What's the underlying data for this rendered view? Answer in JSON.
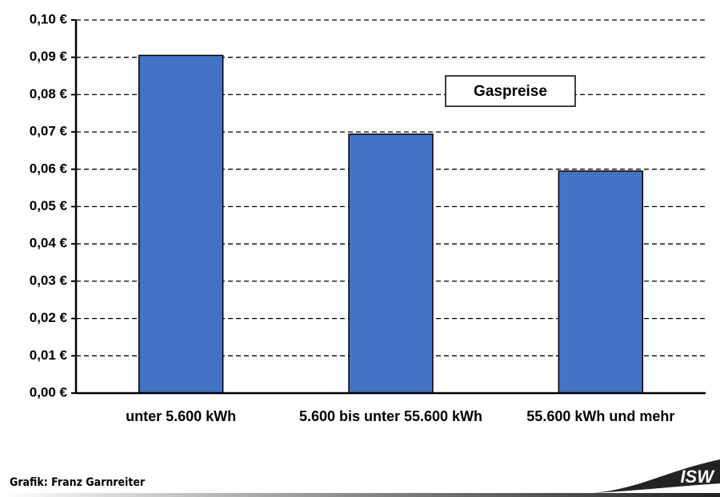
{
  "chart_data": {
    "type": "bar",
    "title": "Gaspreise",
    "categories": [
      "unter 5.600 kWh",
      "5.600 bis unter 55.600 kWh",
      "55.600 kWh und mehr"
    ],
    "values": [
      0.0905,
      0.0694,
      0.0595
    ],
    "color": "#4472c4",
    "ylim": [
      0,
      0.1
    ],
    "yticks": [
      {
        "value": 0,
        "label": "0,00 €"
      },
      {
        "value": 0.01,
        "label": "0,01 €"
      },
      {
        "value": 0.02,
        "label": "0,02 €"
      },
      {
        "value": 0.03,
        "label": "0,03 €"
      },
      {
        "value": 0.04,
        "label": "0,04 €"
      },
      {
        "value": 0.05,
        "label": "0,05 €"
      },
      {
        "value": 0.06,
        "label": "0,06 €"
      },
      {
        "value": 0.07,
        "label": "0,07 €"
      },
      {
        "value": 0.08,
        "label": "0,08 €"
      },
      {
        "value": 0.09,
        "label": "0,09 €"
      },
      {
        "value": 0.1,
        "label": "0,10 €"
      }
    ],
    "grid": true
  },
  "footer": {
    "credit": "Grafik: Franz Garnreiter",
    "logo": "ISW"
  }
}
